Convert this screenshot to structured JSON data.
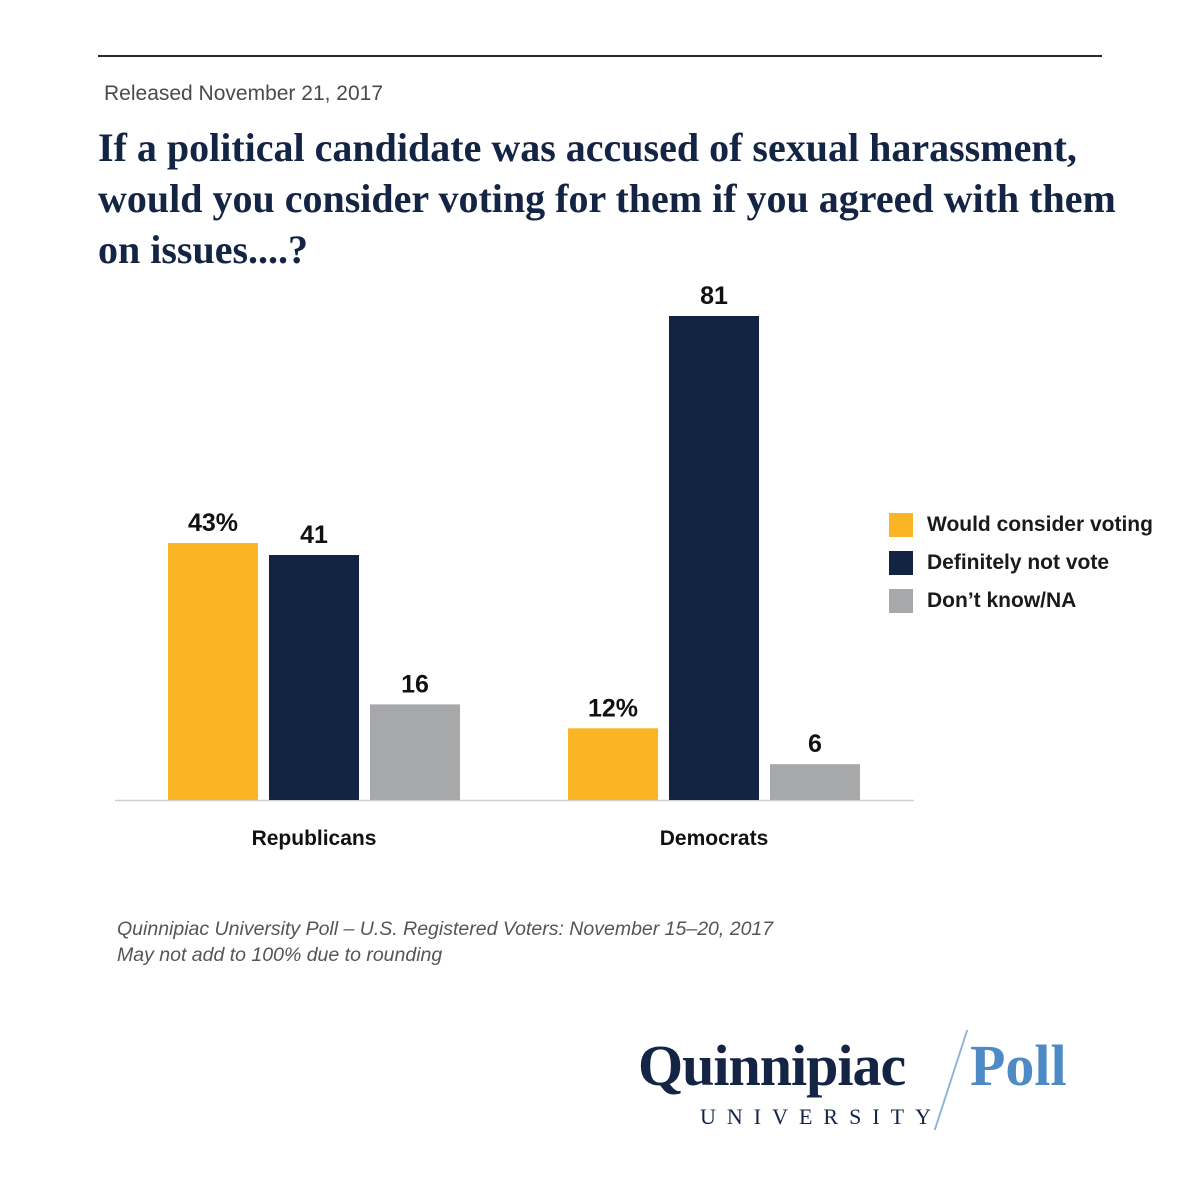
{
  "header": {
    "released": "Released November 21, 2017",
    "title_lines": [
      "If a political candidate was accused of sexual harassment,",
      "would you consider voting for them if you agreed with them",
      "on issues....?"
    ]
  },
  "chart_data": {
    "type": "bar",
    "title": "If a political candidate was accused of sexual harassment, would you consider voting for them if you agreed with them on issues....?",
    "categories": [
      "Republicans",
      "Democrats"
    ],
    "series": [
      {
        "name": "Would consider voting",
        "values": [
          43,
          12
        ],
        "labels": [
          "43%",
          "12%"
        ],
        "color": "#fbb424"
      },
      {
        "name": "Definitely not vote",
        "values": [
          41,
          81
        ],
        "labels": [
          "41",
          "81"
        ],
        "color": "#132442"
      },
      {
        "name": "Don’t know/NA",
        "values": [
          16,
          6
        ],
        "labels": [
          "16",
          "6"
        ],
        "color": "#a7a8aa"
      }
    ],
    "xlabel": "",
    "ylabel": "",
    "ylim": [
      0,
      81
    ],
    "grid": false,
    "legend_position": "right"
  },
  "footnote": {
    "line1": "Quinnipiac University Poll – U.S. Registered Voters: November 15–20, 2017",
    "line2": "May not add to 100% due to rounding"
  },
  "logo": {
    "name": "Quinnipiac",
    "poll": "Poll",
    "university": "UNIVERSITY"
  }
}
